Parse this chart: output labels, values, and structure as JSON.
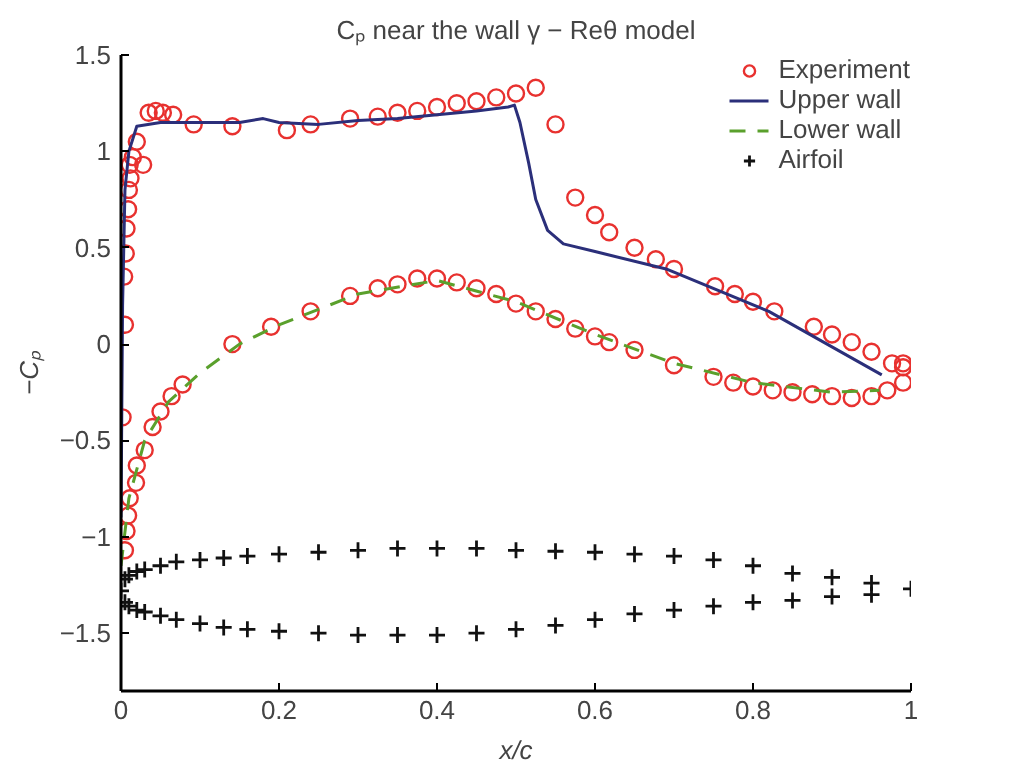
{
  "chart_data": {
    "type": "line",
    "title": "Cₚ near the wall γ − Reθ model",
    "xlabel": "x/c",
    "ylabel": "−Cₚ",
    "xlim": [
      0,
      1
    ],
    "ylim": [
      -1.8,
      1.5
    ],
    "xticks": [
      0,
      0.2,
      0.4,
      0.6,
      0.8,
      1
    ],
    "yticks": [
      1.5,
      1,
      0.5,
      0,
      {
        "value": -0.5,
        "label": "−0.5"
      },
      {
        "value": -1,
        "label": "−1"
      },
      {
        "value": -1.5,
        "label": "−1.5"
      }
    ],
    "grid": false,
    "legend": "top right",
    "series": [
      {
        "name": "Experiment",
        "type": "scatter",
        "marker": "circle",
        "color": "#e8312f",
        "x": [
          0.002,
          0.005,
          0.004,
          0.006,
          0.007,
          0.009,
          0.01,
          0.012,
          0.011,
          0.015,
          0.02,
          0.028,
          0.035,
          0.044,
          0.053,
          0.066,
          0.092,
          0.141,
          0.21,
          0.24,
          0.29,
          0.325,
          0.35,
          0.375,
          0.4,
          0.425,
          0.45,
          0.475,
          0.5,
          0.525,
          0.55,
          0.575,
          0.6,
          0.618,
          0.65,
          0.677,
          0.7,
          0.752,
          0.777,
          0.8,
          0.827,
          0.877,
          0.9,
          0.925,
          0.95,
          0.976,
          0.99,
          0.99,
          0.99,
          0.97,
          0.95,
          0.925,
          0.9,
          0.875,
          0.85,
          0.825,
          0.8,
          0.775,
          0.75,
          0.7,
          0.65,
          0.618,
          0.6,
          0.575,
          0.55,
          0.525,
          0.5,
          0.475,
          0.45,
          0.425,
          0.4,
          0.375,
          0.35,
          0.325,
          0.29,
          0.24,
          0.19,
          0.141,
          0.078,
          0.064,
          0.05,
          0.04,
          0.03,
          0.02,
          0.019,
          0.011,
          0.009,
          0.007,
          0.005
        ],
        "values": [
          -0.38,
          0.1,
          0.35,
          0.47,
          0.6,
          0.7,
          0.8,
          0.86,
          0.93,
          0.97,
          1.05,
          0.93,
          1.2,
          1.21,
          1.2,
          1.19,
          1.14,
          1.13,
          1.11,
          1.14,
          1.17,
          1.18,
          1.2,
          1.21,
          1.23,
          1.25,
          1.26,
          1.28,
          1.3,
          1.33,
          1.14,
          0.76,
          0.67,
          0.58,
          0.5,
          0.44,
          0.39,
          0.3,
          0.26,
          0.22,
          0.17,
          0.09,
          0.05,
          0.01,
          -0.04,
          -0.1,
          -0.12,
          -0.2,
          -0.1,
          -0.24,
          -0.27,
          -0.28,
          -0.27,
          -0.26,
          -0.25,
          -0.24,
          -0.22,
          -0.2,
          -0.17,
          -0.11,
          -0.03,
          0.01,
          0.04,
          0.08,
          0.13,
          0.17,
          0.21,
          0.26,
          0.29,
          0.32,
          0.34,
          0.34,
          0.31,
          0.29,
          0.25,
          0.17,
          0.09,
          0.0,
          -0.21,
          -0.27,
          -0.35,
          -0.43,
          -0.55,
          -0.63,
          -0.72,
          -0.8,
          -0.89,
          -0.97,
          -1.07
        ]
      },
      {
        "name": "Upper wall",
        "line_style": "solid",
        "color": "#2b2f7a",
        "x": [
          0,
          0.002,
          0.005,
          0.01,
          0.02,
          0.05,
          0.1,
          0.15,
          0.18,
          0.2,
          0.25,
          0.3,
          0.35,
          0.4,
          0.45,
          0.49,
          0.498,
          0.505,
          0.516,
          0.525,
          0.54,
          0.56,
          0.6,
          0.69,
          0.82,
          0.963
        ],
        "values": [
          -0.9,
          0.2,
          0.8,
          1.0,
          1.13,
          1.15,
          1.15,
          1.15,
          1.17,
          1.15,
          1.14,
          1.16,
          1.17,
          1.19,
          1.21,
          1.23,
          1.24,
          1.15,
          0.94,
          0.75,
          0.59,
          0.52,
          0.48,
          0.39,
          0.17,
          -0.16
        ]
      },
      {
        "name": "Lower wall",
        "line_style": "dashed",
        "color": "#5aa02c",
        "x": [
          0,
          0.01,
          0.03,
          0.06,
          0.1,
          0.15,
          0.2,
          0.3,
          0.4,
          0.5,
          0.6,
          0.7,
          0.8,
          0.9,
          0.96
        ],
        "values": [
          -1.15,
          -0.8,
          -0.5,
          -0.3,
          -0.15,
          0.0,
          0.1,
          0.26,
          0.33,
          0.22,
          0.05,
          -0.1,
          -0.2,
          -0.25,
          -0.24
        ]
      },
      {
        "name": "Airfoil",
        "type": "scatter",
        "marker": "cross",
        "color": "#111111",
        "x": [
          0,
          0.005,
          0.01,
          0.02,
          0.03,
          0.05,
          0.07,
          0.1,
          0.13,
          0.16,
          0.2,
          0.25,
          0.3,
          0.35,
          0.4,
          0.45,
          0.5,
          0.55,
          0.6,
          0.65,
          0.7,
          0.75,
          0.8,
          0.85,
          0.9,
          0.95,
          1.0,
          0.005,
          0.01,
          0.02,
          0.03,
          0.05,
          0.07,
          0.1,
          0.13,
          0.16,
          0.2,
          0.25,
          0.3,
          0.35,
          0.4,
          0.45,
          0.5,
          0.55,
          0.6,
          0.65,
          0.7,
          0.75,
          0.8,
          0.85,
          0.9,
          0.95
        ],
        "values": [
          -1.28,
          -1.22,
          -1.2,
          -1.18,
          -1.17,
          -1.15,
          -1.13,
          -1.12,
          -1.11,
          -1.1,
          -1.09,
          -1.08,
          -1.07,
          -1.06,
          -1.06,
          -1.06,
          -1.07,
          -1.075,
          -1.08,
          -1.09,
          -1.1,
          -1.12,
          -1.15,
          -1.19,
          -1.21,
          -1.24,
          -1.27,
          -1.34,
          -1.36,
          -1.38,
          -1.39,
          -1.41,
          -1.43,
          -1.45,
          -1.47,
          -1.48,
          -1.49,
          -1.5,
          -1.51,
          -1.51,
          -1.51,
          -1.5,
          -1.48,
          -1.46,
          -1.43,
          -1.4,
          -1.38,
          -1.36,
          -1.34,
          -1.33,
          -1.31,
          -1.3
        ]
      }
    ]
  }
}
